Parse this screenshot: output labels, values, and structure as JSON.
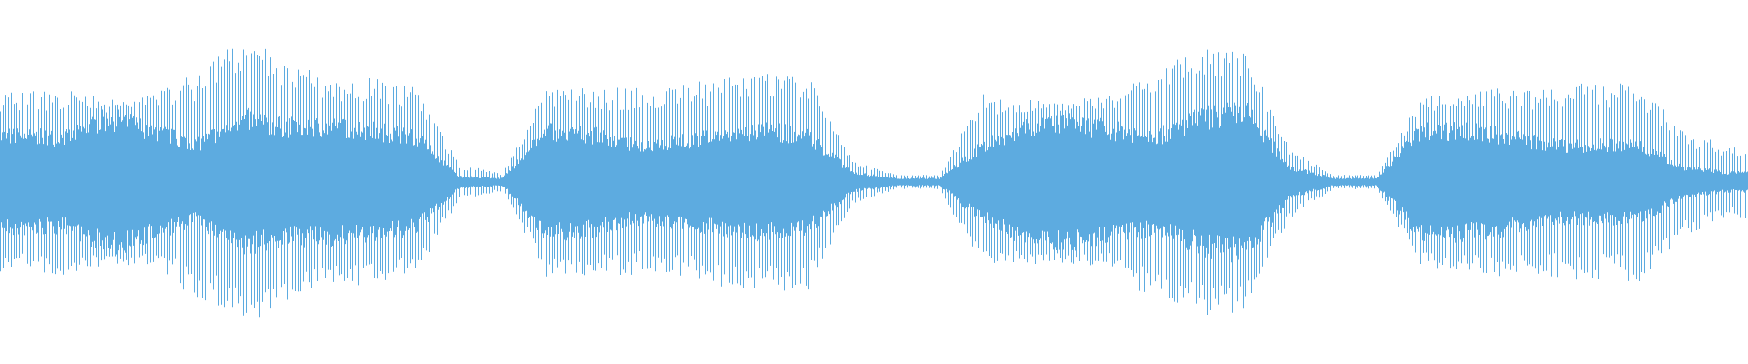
{
  "chart_data": {
    "type": "area",
    "title": "",
    "xlabel": "",
    "ylabel": "",
    "ylim": [
      -1,
      1
    ],
    "grid": false,
    "legend": "none",
    "color": "#5dabe0",
    "background": "#ffffff",
    "series": [
      {
        "peak_envelope": [
          0.5,
          0.52,
          0.45,
          0.48,
          0.65,
          0.78,
          0.7,
          0.55,
          0.58,
          0.52,
          0.1,
          0.05,
          0.52,
          0.52,
          0.52,
          0.53,
          0.58,
          0.6,
          0.6,
          0.12,
          0.04,
          0.04,
          0.5,
          0.45,
          0.45,
          0.48,
          0.7,
          0.74,
          0.72,
          0.2,
          0.04,
          0.04,
          0.47,
          0.5,
          0.52,
          0.52,
          0.55,
          0.55,
          0.3,
          0.2
        ],
        "rms_envelope": [
          0.25,
          0.24,
          0.35,
          0.28,
          0.2,
          0.35,
          0.3,
          0.3,
          0.28,
          0.25,
          0.03,
          0.02,
          0.28,
          0.26,
          0.2,
          0.22,
          0.25,
          0.28,
          0.25,
          0.05,
          0.02,
          0.02,
          0.2,
          0.3,
          0.32,
          0.28,
          0.25,
          0.35,
          0.38,
          0.08,
          0.02,
          0.02,
          0.28,
          0.28,
          0.25,
          0.2,
          0.2,
          0.2,
          0.08,
          0.05
        ]
      }
    ]
  }
}
